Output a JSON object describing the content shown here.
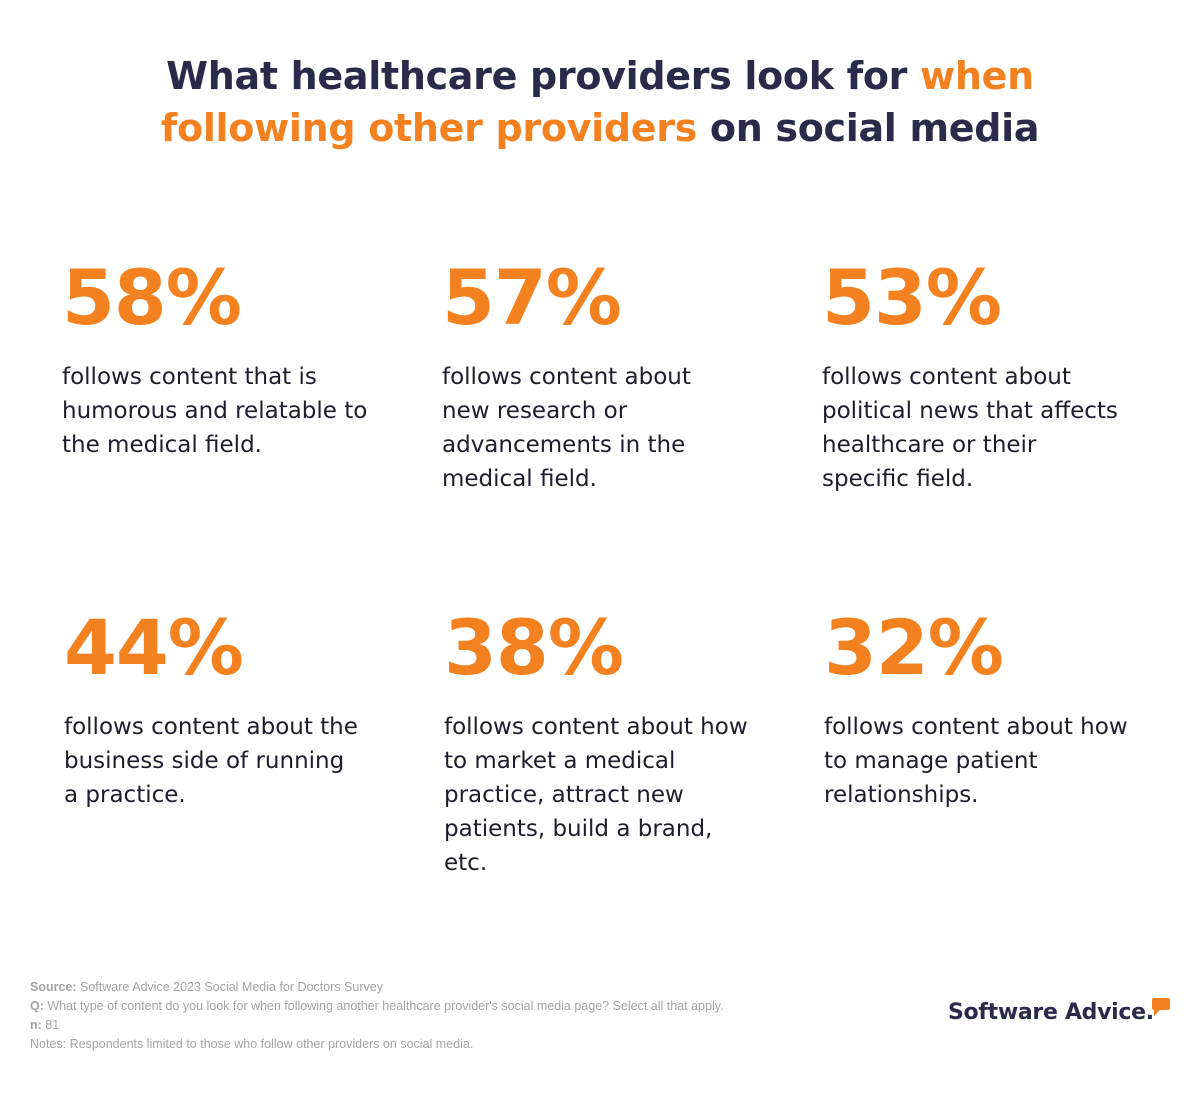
{
  "title": {
    "part1": "What healthcare providers look for ",
    "part2_highlight": "when",
    "part3_highlight": "following other providers",
    "part4": " on social media"
  },
  "stats": [
    {
      "value": "58%",
      "description": "follows content that is humorous and relatable to the medical field."
    },
    {
      "value": "57%",
      "description": "follows content about new research or advancements in the medical field."
    },
    {
      "value": "53%",
      "description": "follows content about political news that affects healthcare or their specific field."
    },
    {
      "value": "44%",
      "description": "follows content about the business side of running a practice."
    },
    {
      "value": "38%",
      "description": "follows content about how to market a medical practice, attract new patients, build a brand, etc."
    },
    {
      "value": "32%",
      "description": "follows content about how to manage patient relationships."
    }
  ],
  "footnote": {
    "source_label": "Source:",
    "source_text": " Software Advice 2023 Social Media for Doctors Survey",
    "q_label": "Q:",
    "q_text": " What type of content do you look for when following another healthcare provider's social media page? Select all that apply.",
    "n_label": "n:",
    "n_text": " 81",
    "notes_text": "Notes: Respondents limited to those who follow other providers on social media."
  },
  "logo": {
    "text": "Software Advice.",
    "icon": "speech-bubble-icon",
    "accent_color": "#f4811f"
  },
  "colors": {
    "accent": "#f4811f",
    "heading": "#2a2a4a",
    "body_text": "#1d1d2b",
    "footnote": "#a3a3a8"
  }
}
